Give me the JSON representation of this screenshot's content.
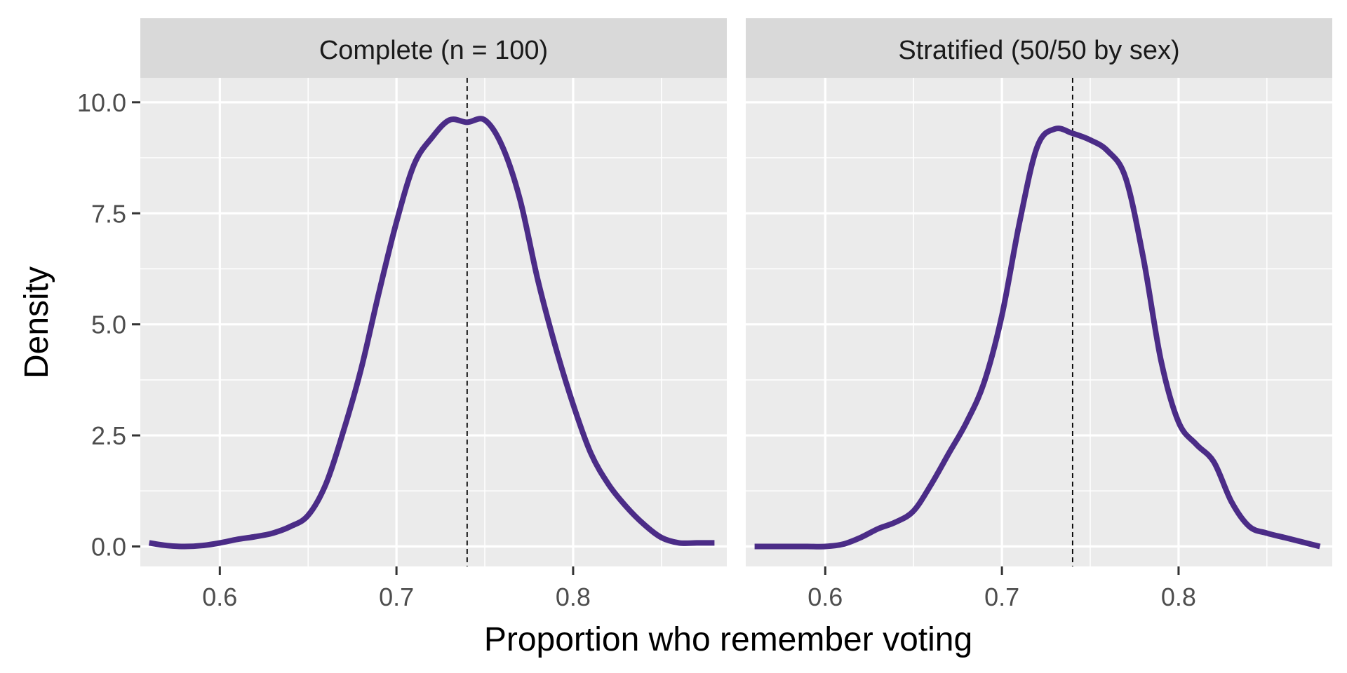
{
  "chart_data": {
    "type": "line",
    "xlabel": "Proportion who remember voting",
    "ylabel": "Density",
    "xlim": [
      0.555,
      0.887
    ],
    "ylim": [
      -0.45,
      10.0
    ],
    "x_ticks": [
      0.6,
      0.7,
      0.8
    ],
    "x_tick_labels": [
      "0.6",
      "0.7",
      "0.8"
    ],
    "y_ticks": [
      0.0,
      2.5,
      5.0,
      7.5,
      10.0
    ],
    "y_tick_labels": [
      "0.0",
      "2.5",
      "5.0",
      "7.5",
      "10.0"
    ],
    "grid": true,
    "line_color": "#4B2C87",
    "panel_background": "#EBEBEB",
    "strip_background": "#D9D9D9",
    "panels": [
      {
        "strip_label": "Complete (n = 100)",
        "reference_x": 0.74,
        "x": [
          0.56,
          0.57,
          0.58,
          0.59,
          0.6,
          0.61,
          0.62,
          0.63,
          0.64,
          0.65,
          0.66,
          0.67,
          0.68,
          0.69,
          0.7,
          0.71,
          0.72,
          0.73,
          0.74,
          0.75,
          0.76,
          0.77,
          0.78,
          0.79,
          0.8,
          0.81,
          0.82,
          0.83,
          0.84,
          0.85,
          0.86,
          0.87,
          0.88
        ],
        "y": [
          0.08,
          0.02,
          0.0,
          0.02,
          0.08,
          0.16,
          0.22,
          0.3,
          0.45,
          0.7,
          1.4,
          2.6,
          4.0,
          5.7,
          7.3,
          8.6,
          9.2,
          9.6,
          9.55,
          9.6,
          9.0,
          7.8,
          6.0,
          4.5,
          3.2,
          2.1,
          1.4,
          0.9,
          0.5,
          0.2,
          0.08,
          0.08,
          0.08
        ]
      },
      {
        "strip_label": "Stratified (50/50 by sex)",
        "reference_x": 0.74,
        "x": [
          0.56,
          0.57,
          0.58,
          0.59,
          0.6,
          0.61,
          0.62,
          0.63,
          0.64,
          0.65,
          0.66,
          0.67,
          0.68,
          0.69,
          0.7,
          0.71,
          0.72,
          0.73,
          0.74,
          0.75,
          0.76,
          0.77,
          0.78,
          0.79,
          0.8,
          0.81,
          0.82,
          0.83,
          0.84,
          0.85,
          0.86,
          0.87,
          0.88
        ],
        "y": [
          0.0,
          0.0,
          0.0,
          0.0,
          0.0,
          0.05,
          0.2,
          0.4,
          0.55,
          0.8,
          1.4,
          2.1,
          2.8,
          3.7,
          5.2,
          7.3,
          9.0,
          9.4,
          9.3,
          9.15,
          8.9,
          8.3,
          6.5,
          4.2,
          2.8,
          2.3,
          1.9,
          1.0,
          0.45,
          0.3,
          0.2,
          0.1,
          0.0
        ]
      }
    ]
  }
}
